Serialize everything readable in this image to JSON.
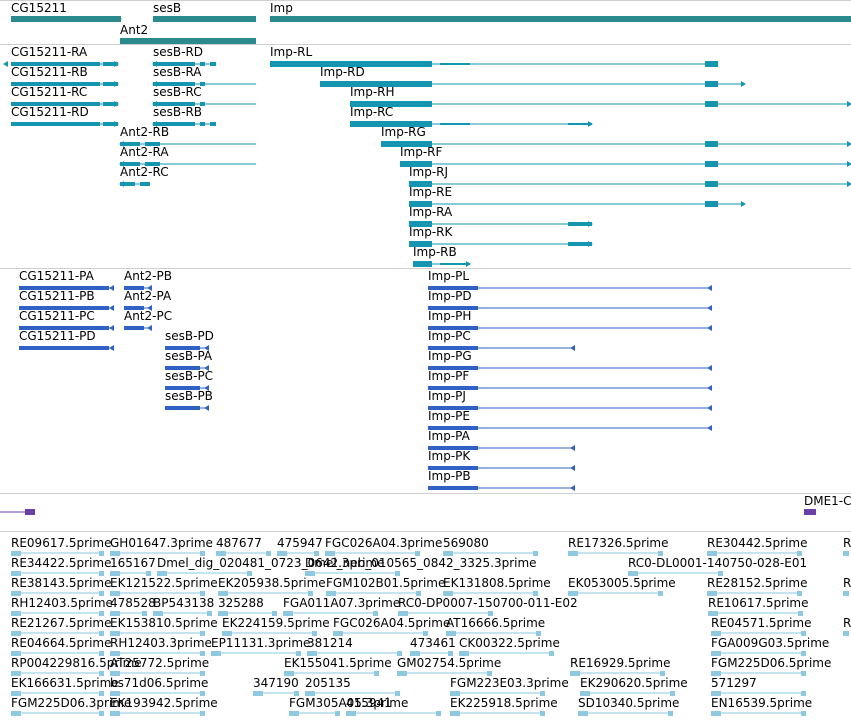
{
  "colors": {
    "gene": "#2b8a8c",
    "mrna": "#1496b0",
    "protein": "#2f62c4",
    "repeat": "#6a3fa8",
    "est": "#8ec9e0",
    "divider": "#cfcfcf"
  },
  "genes": [
    {
      "label": "CG15211"
    },
    {
      "label": "sesB"
    },
    {
      "label": "Imp"
    },
    {
      "label": "Ant2"
    }
  ],
  "mrnas": [
    {
      "label": "CG15211-RA"
    },
    {
      "label": "CG15211-RB"
    },
    {
      "label": "CG15211-RC"
    },
    {
      "label": "CG15211-RD"
    },
    {
      "label": "sesB-RD"
    },
    {
      "label": "sesB-RA"
    },
    {
      "label": "sesB-RC"
    },
    {
      "label": "sesB-RB"
    },
    {
      "label": "Ant2-RB"
    },
    {
      "label": "Ant2-RA"
    },
    {
      "label": "Ant2-RC"
    },
    {
      "label": "Imp-RL"
    },
    {
      "label": "Imp-RD"
    },
    {
      "label": "Imp-RH"
    },
    {
      "label": "Imp-RC"
    },
    {
      "label": "Imp-RG"
    },
    {
      "label": "Imp-RF"
    },
    {
      "label": "Imp-RJ"
    },
    {
      "label": "Imp-RE"
    },
    {
      "label": "Imp-RA"
    },
    {
      "label": "Imp-RK"
    },
    {
      "label": "Imp-RB"
    }
  ],
  "proteins": [
    {
      "label": "CG15211-PA"
    },
    {
      "label": "CG15211-PB"
    },
    {
      "label": "CG15211-PC"
    },
    {
      "label": "CG15211-PD"
    },
    {
      "label": "Ant2-PB"
    },
    {
      "label": "Ant2-PA"
    },
    {
      "label": "Ant2-PC"
    },
    {
      "label": "sesB-PD"
    },
    {
      "label": "sesB-PA"
    },
    {
      "label": "sesB-PC"
    },
    {
      "label": "sesB-PB"
    },
    {
      "label": "Imp-PL"
    },
    {
      "label": "Imp-PD"
    },
    {
      "label": "Imp-PH"
    },
    {
      "label": "Imp-PC"
    },
    {
      "label": "Imp-PG"
    },
    {
      "label": "Imp-PF"
    },
    {
      "label": "Imp-PJ"
    },
    {
      "label": "Imp-PE"
    },
    {
      "label": "Imp-PA"
    },
    {
      "label": "Imp-PK"
    },
    {
      "label": "Imp-PB"
    }
  ],
  "repeats": [
    {
      "label": "DME1-C"
    }
  ],
  "ests": [
    {
      "label": "RE09617.5prime"
    },
    {
      "label": "GH01647.3prime"
    },
    {
      "label": "487677"
    },
    {
      "label": "475947"
    },
    {
      "label": "FGC026A04.3prime"
    },
    {
      "label": "569080"
    },
    {
      "label": "RE17326.5prime"
    },
    {
      "label": "RE30442.5prime"
    },
    {
      "label": "R"
    },
    {
      "label": "RE34422.5prime"
    },
    {
      "label": "165167"
    },
    {
      "label": "Dmel_dig_020481_0723_0642.3prime"
    },
    {
      "label": "Dmel_neb_010565_0842_3325.3prime"
    },
    {
      "label": "RC0-DL0001-140750-028-E01"
    },
    {
      "label": "RE38143.5prime"
    },
    {
      "label": "EK121522.5prime"
    },
    {
      "label": "EK205938.5prime"
    },
    {
      "label": "FGM102B01.5prime"
    },
    {
      "label": "EK131808.5prime"
    },
    {
      "label": "EK053005.5prime"
    },
    {
      "label": "RE28152.5prime"
    },
    {
      "label": "R"
    },
    {
      "label": "RH12403.5prime"
    },
    {
      "label": "478528"
    },
    {
      "label": "BP543138"
    },
    {
      "label": "325288"
    },
    {
      "label": "FGA011A07.3prime"
    },
    {
      "label": "RC0-DP0007-150700-011-E02"
    },
    {
      "label": "RE10617.5prime"
    },
    {
      "label": "RE21267.5prime"
    },
    {
      "label": "EK153810.5prime"
    },
    {
      "label": "EK224159.5prime"
    },
    {
      "label": "FGC026A04.5prime"
    },
    {
      "label": "AT16666.5prime"
    },
    {
      "label": "RE04571.5prime"
    },
    {
      "label": "R"
    },
    {
      "label": "RE04664.5prime"
    },
    {
      "label": "RH12403.3prime"
    },
    {
      "label": "EP11131.3prime"
    },
    {
      "label": "381214"
    },
    {
      "label": "473461"
    },
    {
      "label": "CK00322.5prime"
    },
    {
      "label": "FGA009G03.5prime"
    },
    {
      "label": "RP004229816.5prime"
    },
    {
      "label": "AT25772.5prime"
    },
    {
      "label": "EK155041.5prime"
    },
    {
      "label": "GM02754.5prime"
    },
    {
      "label": "RE16929.5prime"
    },
    {
      "label": "FGM225D06.5prime"
    },
    {
      "label": "EK166631.5prime"
    },
    {
      "label": "bs71d06.5prime"
    },
    {
      "label": "347190"
    },
    {
      "label": "205135"
    },
    {
      "label": "FGM223E03.3prime"
    },
    {
      "label": "EK290620.5prime"
    },
    {
      "label": "571297"
    },
    {
      "label": "FGM225D06.3prime"
    },
    {
      "label": "EK193942.5prime"
    },
    {
      "label": "FGM305A05.3prime"
    },
    {
      "label": "415941"
    },
    {
      "label": "EK225918.5prime"
    },
    {
      "label": "SD10340.5prime"
    },
    {
      "label": "EN16539.5prime"
    },
    {
      "label": "FGA009G01.5prime"
    }
  ]
}
